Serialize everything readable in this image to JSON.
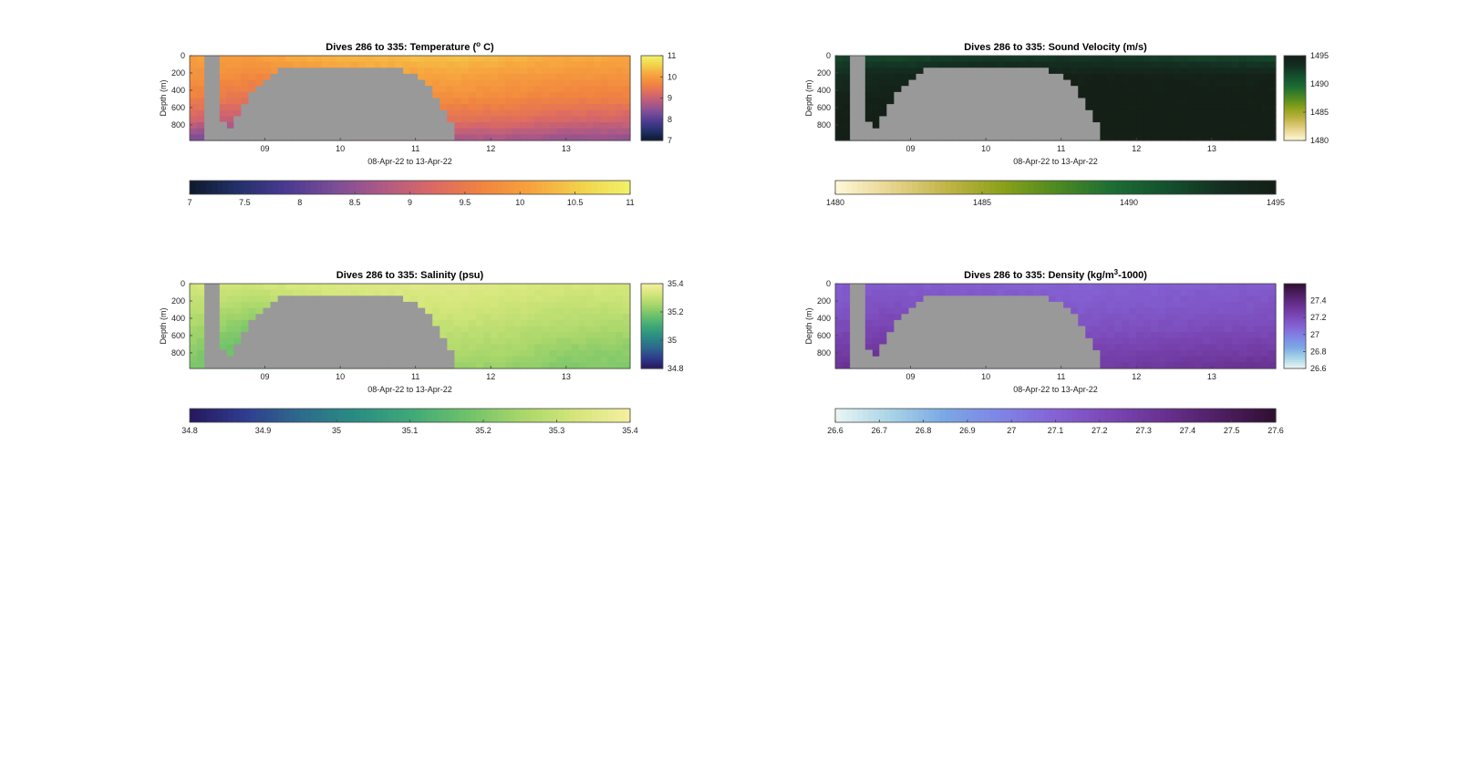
{
  "chart_data": [
    {
      "type": "heatmap",
      "title_prefix": "Dives 286 to 335: Temperature (",
      "title_sup": "o",
      "title_suffix": " C)",
      "xlabel": "08-Apr-22 to 13-Apr-22",
      "ylabel": "Depth (m)",
      "xlim": [
        8.0,
        13.85
      ],
      "ylim": [
        0,
        980
      ],
      "x_ticks": [
        "09",
        "10",
        "11",
        "12",
        "13"
      ],
      "x_tick_values": [
        9,
        10,
        11,
        12,
        13
      ],
      "y_ticks": [
        "0",
        "200",
        "400",
        "600",
        "800"
      ],
      "y_tick_values": [
        0,
        200,
        400,
        600,
        800
      ],
      "colormap": [
        "#0d1a2b",
        "#23306b",
        "#4b3a92",
        "#7d4e97",
        "#b25a84",
        "#dc6a63",
        "#f1853f",
        "#f7a43e",
        "#f2d24b",
        "#f0f36a"
      ],
      "clim": [
        7,
        11
      ],
      "side_cbar_ticks": [
        "7",
        "8",
        "9",
        "10",
        "11"
      ],
      "bottom_cbar_ticks": [
        "7",
        "7.5",
        "8",
        "8.5",
        "9",
        "9.5",
        "10",
        "10.5",
        "11"
      ],
      "values": [
        [
          10.05,
          10.02,
          10.25,
          10.35,
          10.4,
          10.3,
          10.2,
          10.15
        ],
        [
          9.9,
          9.7,
          9.85,
          10.0,
          10.1,
          10.0,
          9.9,
          9.85
        ],
        [
          9.6,
          9.4,
          9.55,
          9.7,
          9.8,
          9.75,
          9.6,
          9.6
        ],
        [
          9.1,
          8.9,
          9.05,
          9.2,
          9.35,
          9.3,
          9.15,
          9.1
        ],
        [
          8.3,
          7.9,
          8.3,
          8.55,
          8.7,
          8.65,
          8.5,
          8.45
        ]
      ]
    },
    {
      "type": "heatmap",
      "title_prefix": "Dives 286 to 335: Sound Velocity (m/s)",
      "title_sup": "",
      "title_suffix": "",
      "xlabel": "08-Apr-22 to 13-Apr-22",
      "ylabel": "Depth (m)",
      "xlim": [
        8.0,
        13.85
      ],
      "ylim": [
        0,
        980
      ],
      "x_ticks": [
        "09",
        "10",
        "11",
        "12",
        "13"
      ],
      "x_tick_values": [
        9,
        10,
        11,
        12,
        13
      ],
      "y_ticks": [
        "0",
        "200",
        "400",
        "600",
        "800"
      ],
      "y_tick_values": [
        0,
        200,
        400,
        600,
        800
      ],
      "colormap": [
        "#fdf8d8",
        "#e8d58f",
        "#c2b548",
        "#8ea21a",
        "#4f8a20",
        "#1d6e34",
        "#14522e",
        "#142f22",
        "#141f16"
      ],
      "clim": [
        1480,
        1495
      ],
      "side_cbar_ticks": [
        "1480",
        "1485",
        "1490",
        "1495"
      ],
      "bottom_cbar_ticks": [
        "1480",
        "1485",
        "1490",
        "1495"
      ],
      "values": [
        [
          1492.0,
          1491.6,
          1492.2,
          1492.5,
          1492.6,
          1492.2,
          1491.8,
          1491.6
        ],
        [
          1493.5,
          1494.2,
          1494.6,
          1494.8,
          1494.8,
          1494.8,
          1494.7,
          1494.6
        ],
        [
          1494.6,
          1494.8,
          1495.0,
          1495.0,
          1495.0,
          1495.0,
          1495.0,
          1495.0
        ],
        [
          1494.9,
          1495.0,
          1495.0,
          1495.0,
          1495.0,
          1495.0,
          1495.0,
          1495.0
        ],
        [
          1495.0,
          1495.0,
          1495.0,
          1495.0,
          1495.0,
          1495.0,
          1495.0,
          1495.0
        ]
      ]
    },
    {
      "type": "heatmap",
      "title_prefix": "Dives 286 to 335: Salinity (psu)",
      "title_sup": "",
      "title_suffix": "",
      "xlabel": "08-Apr-22 to 13-Apr-22",
      "ylabel": "Depth (m)",
      "xlim": [
        8.0,
        13.85
      ],
      "ylim": [
        0,
        980
      ],
      "x_ticks": [
        "09",
        "10",
        "11",
        "12",
        "13"
      ],
      "x_tick_values": [
        9,
        10,
        11,
        12,
        13
      ],
      "y_ticks": [
        "0",
        "200",
        "400",
        "600",
        "800"
      ],
      "y_tick_values": [
        0,
        200,
        400,
        600,
        800
      ],
      "colormap": [
        "#26185e",
        "#2f3c8e",
        "#2d6a8c",
        "#2a8c83",
        "#3fa878",
        "#6cc16a",
        "#a7d66a",
        "#d3e67a",
        "#f5efa0"
      ],
      "clim": [
        34.8,
        35.4
      ],
      "side_cbar_ticks": [
        "34.8",
        "35",
        "35.2",
        "35.4"
      ],
      "bottom_cbar_ticks": [
        "34.8",
        "34.9",
        "35",
        "35.1",
        "35.2",
        "35.3",
        "35.4"
      ],
      "values": [
        [
          35.33,
          35.32,
          35.34,
          35.35,
          35.35,
          35.34,
          35.33,
          35.33
        ],
        [
          35.3,
          35.26,
          35.3,
          35.32,
          35.33,
          35.32,
          35.3,
          35.3
        ],
        [
          35.26,
          35.2,
          35.25,
          35.28,
          35.3,
          35.29,
          35.27,
          35.26
        ],
        [
          35.22,
          35.16,
          35.21,
          35.24,
          35.27,
          35.26,
          35.23,
          35.22
        ],
        [
          35.2,
          35.14,
          35.18,
          35.21,
          35.24,
          35.23,
          35.2,
          35.2
        ]
      ]
    },
    {
      "type": "heatmap",
      "title_prefix": "Dives 286 to 335: Density (kg/m",
      "title_sup": "3",
      "title_suffix": "-1000)",
      "xlabel": "08-Apr-22 to 13-Apr-22",
      "ylabel": "Depth (m)",
      "xlim": [
        8.0,
        13.85
      ],
      "ylim": [
        0,
        980
      ],
      "x_ticks": [
        "09",
        "10",
        "11",
        "12",
        "13"
      ],
      "x_tick_values": [
        9,
        10,
        11,
        12,
        13
      ],
      "y_ticks": [
        "0",
        "200",
        "400",
        "600",
        "800"
      ],
      "y_tick_values": [
        0,
        200,
        400,
        600,
        800
      ],
      "colormap": [
        "#eaf6f4",
        "#a8d4e6",
        "#7aa7e5",
        "#7f84e6",
        "#8462d4",
        "#7a46b4",
        "#67308f",
        "#4e1e62",
        "#2f0f30"
      ],
      "clim": [
        26.6,
        27.6
      ],
      "side_cbar_ticks": [
        "26.6",
        "26.8",
        "27",
        "27.2",
        "27.4"
      ],
      "bottom_cbar_ticks": [
        "26.6",
        "26.7",
        "26.8",
        "26.9",
        "27",
        "27.1",
        "27.2",
        "27.3",
        "27.4",
        "27.5",
        "27.6"
      ],
      "values": [
        [
          27.13,
          27.13,
          27.12,
          27.11,
          27.1,
          27.11,
          27.12,
          27.13
        ],
        [
          27.15,
          27.18,
          27.15,
          27.14,
          27.13,
          27.14,
          27.15,
          27.16
        ],
        [
          27.2,
          27.24,
          27.2,
          27.18,
          27.17,
          27.18,
          27.19,
          27.2
        ],
        [
          27.26,
          27.32,
          27.27,
          27.25,
          27.23,
          27.24,
          27.26,
          27.27
        ],
        [
          27.33,
          27.4,
          27.34,
          27.31,
          27.29,
          27.3,
          27.33,
          27.34
        ]
      ]
    }
  ]
}
